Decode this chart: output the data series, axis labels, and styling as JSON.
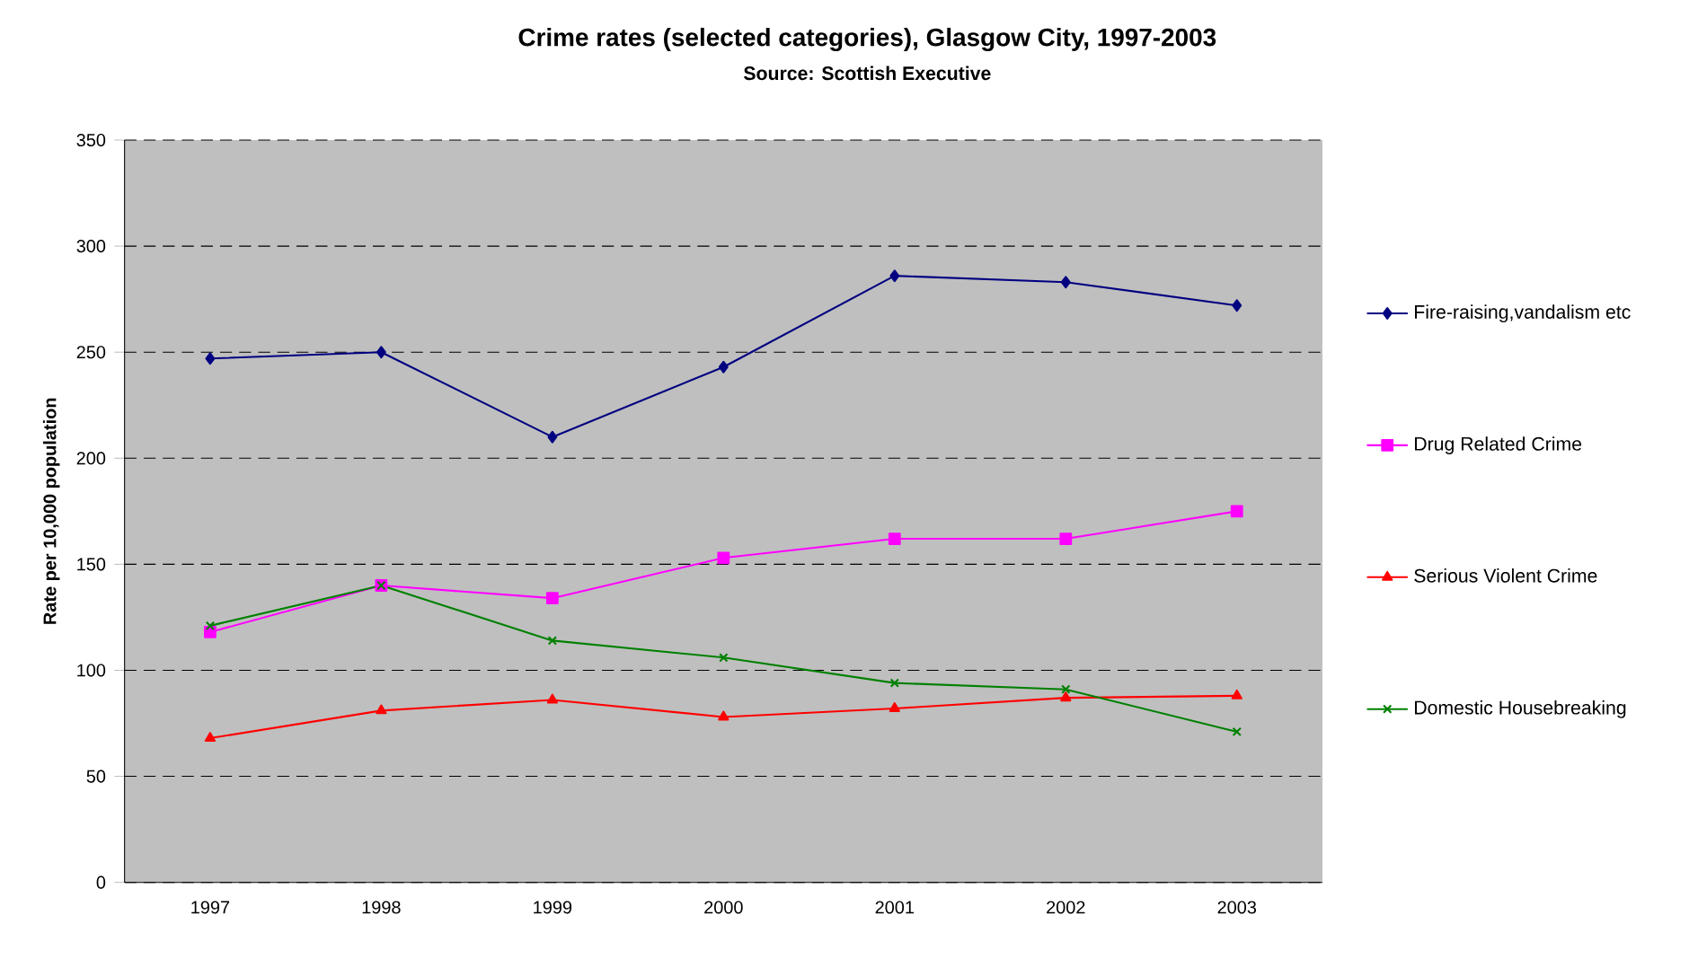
{
  "chart_data": {
    "type": "line",
    "title": "Crime rates (selected categories), Glasgow City, 1997-2003",
    "subtitle": "Source: Scottish Executive",
    "ylabel": "Rate per 10,000 population",
    "categories": [
      "1997",
      "1998",
      "1999",
      "2000",
      "2001",
      "2002",
      "2003"
    ],
    "series": [
      {
        "name": "Fire-raising,vandalism etc",
        "color": "#000080",
        "marker": "diamond",
        "values": [
          247,
          250,
          210,
          243,
          286,
          283,
          272
        ]
      },
      {
        "name": "Drug Related Crime",
        "color": "#ff00ff",
        "marker": "square",
        "values": [
          118,
          140,
          134,
          153,
          162,
          162,
          175
        ]
      },
      {
        "name": "Serious Violent Crime",
        "color": "#ff0000",
        "marker": "triangle",
        "values": [
          68,
          81,
          86,
          78,
          82,
          87,
          88
        ]
      },
      {
        "name": "Domestic Housebreaking",
        "color": "#008000",
        "marker": "cross",
        "values": [
          121,
          140,
          114,
          106,
          94,
          91,
          71
        ]
      }
    ],
    "ylim": [
      0,
      350
    ],
    "yticks": [
      0,
      50,
      100,
      150,
      200,
      250,
      300,
      350
    ],
    "grid": "y",
    "legend": "right",
    "line_style": "solid"
  }
}
